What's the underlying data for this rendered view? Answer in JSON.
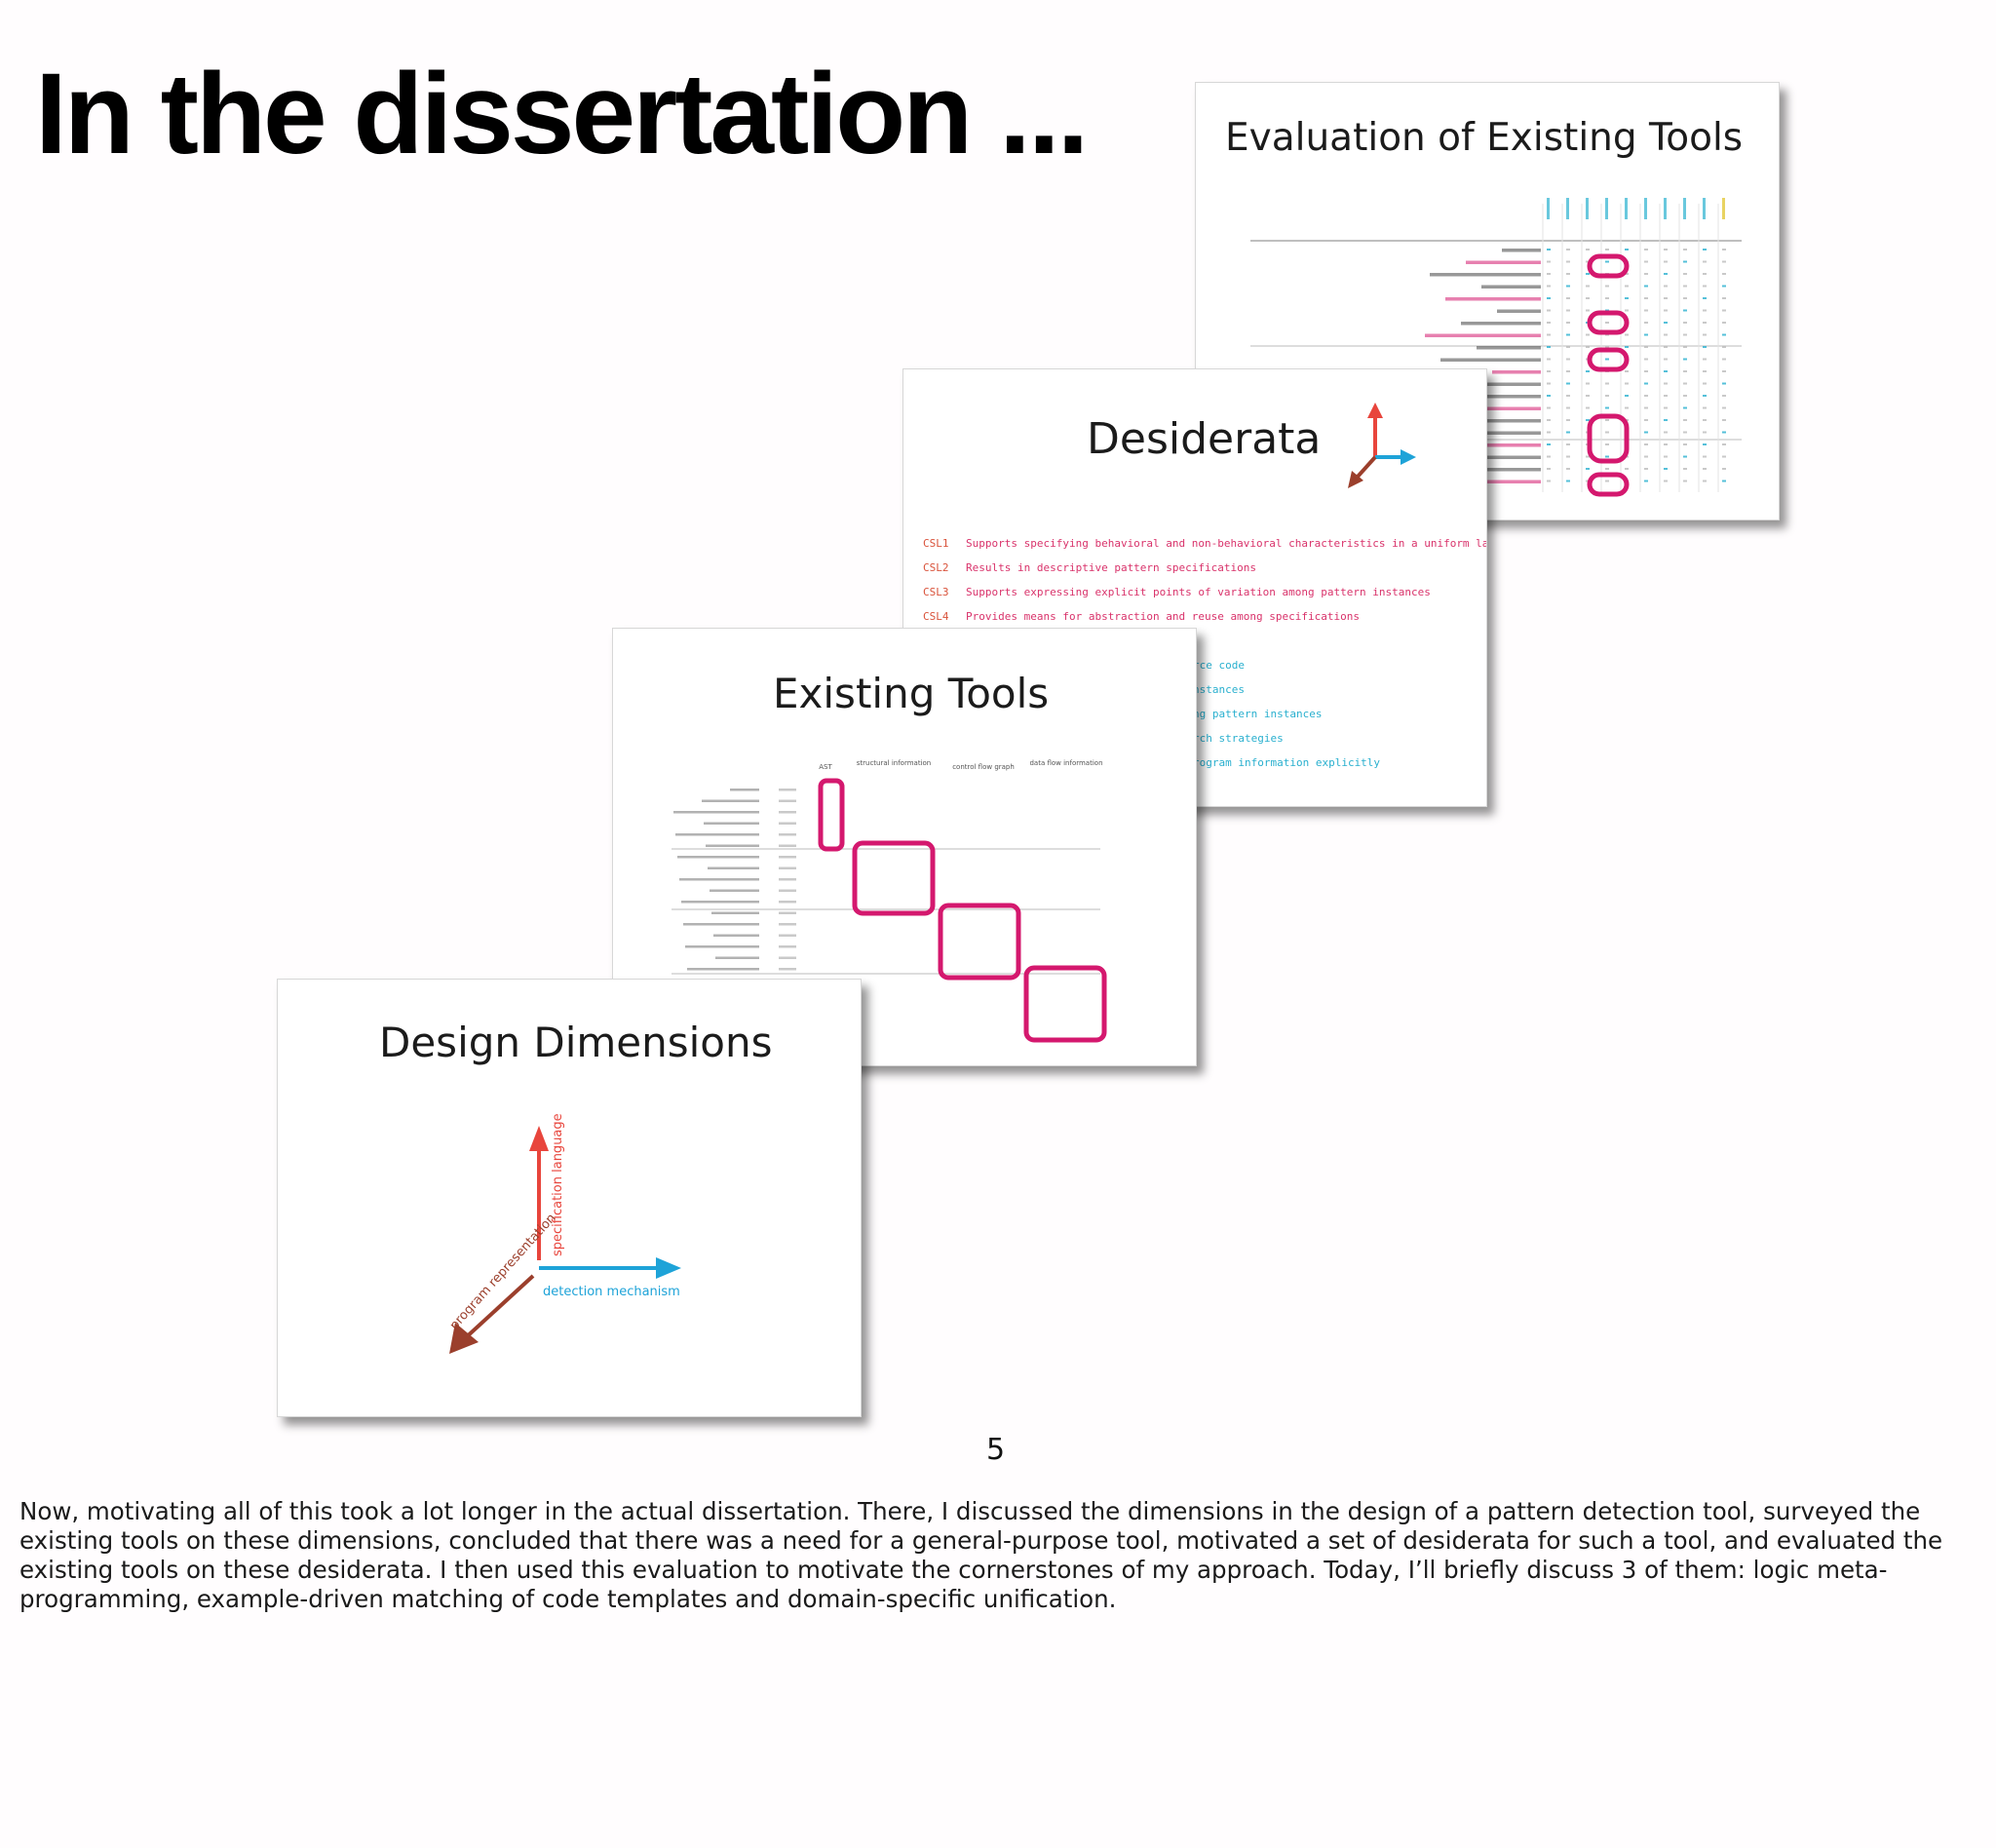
{
  "heading": "In the dissertation ...",
  "slides": {
    "evaluation": {
      "title": "Evaluation of Existing Tools"
    },
    "desiderata": {
      "title": "Desiderata",
      "items": [
        {
          "code": "CSL1",
          "text": "Supports specifying behavioral and non-behavioral characteristics in a uniform language"
        },
        {
          "code": "CSL2",
          "text": "Results in descriptive pattern specifications"
        },
        {
          "code": "CSL3",
          "text": "Supports expressing explicit points of variation among pattern instances"
        },
        {
          "code": "CSL4",
          "text": "Provides means for abstraction and reuse among specifications"
        }
      ],
      "partial_items": [
        "rce code",
        "nstances",
        "ng pattern instances",
        "rch strategies",
        "rogram information explicitly"
      ]
    },
    "existing_tools": {
      "title": "Existing Tools",
      "columns": [
        "AST",
        "structural information",
        "control flow graph",
        "data flow information"
      ]
    },
    "design_dimensions": {
      "title": "Design Dimensions",
      "axes": {
        "up": "specification language",
        "right": "detection mechanism",
        "down_left": "program representation"
      }
    }
  },
  "page_number": "5",
  "notes": "Now, motivating all of this took a lot longer in the actual dissertation. There, I discussed the dimensions in the design of a pattern detection tool, surveyed the existing tools on these dimensions, concluded that there was a need for a general-purpose tool, motivated a set of desiderata for such a tool, and evaluated the existing tools on these desiderata. I then used this evaluation to motivate the cornerstones of my approach.  Today, I’ll briefly discuss 3 of them: logic meta-programming, example-driven matching of code templates and domain-specific unification.",
  "colors": {
    "highlight": "#d4186e",
    "arrow_red": "#e8453c",
    "arrow_blue": "#1ea3d8",
    "arrow_brown": "#9b3f2c"
  }
}
